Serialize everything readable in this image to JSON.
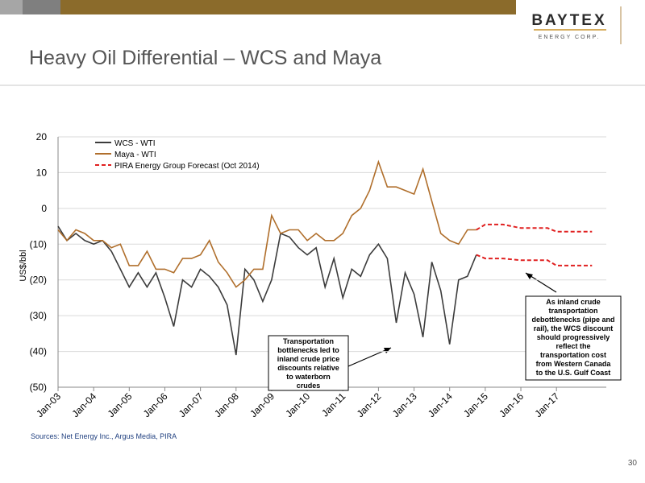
{
  "header": {
    "logo": "BAYTEX",
    "logo_sub": "ENERGY CORP.",
    "title": "Heavy Oil Differential – WCS and Maya"
  },
  "chart_data": {
    "type": "line",
    "y_label": "US$/bbl",
    "xlim": [
      2003,
      2018.4
    ],
    "xticks": [
      {
        "value": 2003,
        "label": "Jan-03"
      },
      {
        "value": 2004,
        "label": "Jan-04"
      },
      {
        "value": 2005,
        "label": "Jan-05"
      },
      {
        "value": 2006,
        "label": "Jan-06"
      },
      {
        "value": 2007,
        "label": "Jan-07"
      },
      {
        "value": 2008,
        "label": "Jan-08"
      },
      {
        "value": 2009,
        "label": "Jan-09"
      },
      {
        "value": 2010,
        "label": "Jan-10"
      },
      {
        "value": 2011,
        "label": "Jan-11"
      },
      {
        "value": 2012,
        "label": "Jan-12"
      },
      {
        "value": 2013,
        "label": "Jan-13"
      },
      {
        "value": 2014,
        "label": "Jan-14"
      },
      {
        "value": 2015,
        "label": "Jan-15"
      },
      {
        "value": 2016,
        "label": "Jan-16"
      },
      {
        "value": 2017,
        "label": "Jan-17"
      }
    ],
    "ylim": [
      -50,
      20
    ],
    "yticks": [
      20,
      10,
      0,
      {
        "value": -10,
        "label": "(10)"
      },
      {
        "value": -20,
        "label": "(20)"
      },
      {
        "value": -30,
        "label": "(30)"
      },
      {
        "value": -40,
        "label": "(40)"
      },
      {
        "value": -50,
        "label": "(50)"
      }
    ],
    "grid": true,
    "series": [
      {
        "name": "WCS - WTI",
        "color": "#3c3c3c",
        "dash": false,
        "x": [
          2003,
          2003.25,
          2003.5,
          2003.75,
          2004,
          2004.25,
          2004.5,
          2004.75,
          2005,
          2005.25,
          2005.5,
          2005.75,
          2006,
          2006.25,
          2006.5,
          2006.75,
          2007,
          2007.25,
          2007.5,
          2007.75,
          2008,
          2008.25,
          2008.5,
          2008.75,
          2009,
          2009.25,
          2009.5,
          2009.75,
          2010,
          2010.25,
          2010.5,
          2010.75,
          2011,
          2011.25,
          2011.5,
          2011.75,
          2012,
          2012.25,
          2012.5,
          2012.75,
          2013,
          2013.25,
          2013.5,
          2013.75,
          2014,
          2014.25,
          2014.5,
          2014.75
        ],
        "values": [
          -5,
          -9,
          -7,
          -9,
          -10,
          -9,
          -12,
          -17,
          -22,
          -18,
          -22,
          -18,
          -25,
          -33,
          -20,
          -22,
          -17,
          -19,
          -22,
          -27,
          -41,
          -17,
          -20,
          -26,
          -20,
          -7,
          -8,
          -11,
          -13,
          -11,
          -22,
          -14,
          -25,
          -17,
          -19,
          -13,
          -10,
          -14,
          -32,
          -18,
          -24,
          -36,
          -15,
          -23,
          -38,
          -20,
          -19,
          -13
        ]
      },
      {
        "name": "Maya - WTI",
        "color": "#b06f2c",
        "dash": false,
        "x": [
          2003,
          2003.25,
          2003.5,
          2003.75,
          2004,
          2004.25,
          2004.5,
          2004.75,
          2005,
          2005.25,
          2005.5,
          2005.75,
          2006,
          2006.25,
          2006.5,
          2006.75,
          2007,
          2007.25,
          2007.5,
          2007.75,
          2008,
          2008.25,
          2008.5,
          2008.75,
          2009,
          2009.25,
          2009.5,
          2009.75,
          2010,
          2010.25,
          2010.5,
          2010.75,
          2011,
          2011.25,
          2011.5,
          2011.75,
          2012,
          2012.25,
          2012.5,
          2012.75,
          2013,
          2013.25,
          2013.5,
          2013.75,
          2014,
          2014.25,
          2014.5,
          2014.75
        ],
        "values": [
          -6,
          -9,
          -6,
          -7,
          -9,
          -9,
          -11,
          -10,
          -16,
          -16,
          -12,
          -17,
          -17,
          -18,
          -14,
          -14,
          -13,
          -9,
          -15,
          -18,
          -22,
          -20,
          -17,
          -17,
          -2,
          -7,
          -6,
          -6,
          -9,
          -7,
          -9,
          -9,
          -7,
          -2,
          0,
          5,
          13,
          6,
          6,
          5,
          4,
          11,
          2,
          -7,
          -9,
          -10,
          -6,
          -6
        ]
      },
      {
        "name": "PIRA Energy Group Forecast (Oct 2014)",
        "color": "#e02020",
        "dash": true,
        "x": [
          2014.75,
          2015,
          2015.5,
          2016,
          2016.75,
          2017,
          2018
        ],
        "values": [
          -6,
          -4.5,
          -4.5,
          -5.5,
          -5.5,
          -6.5,
          -6.5
        ]
      },
      {
        "color": "#e02020",
        "dash": true,
        "x": [
          2014.75,
          2015,
          2015.5,
          2016,
          2016.75,
          2017,
          2018
        ],
        "values": [
          -13,
          -14,
          -14,
          -14.5,
          -14.5,
          -16,
          -16
        ]
      }
    ],
    "annotations": [
      {
        "lines": [
          "Transportation",
          "bottlenecks led to",
          "inland crude price",
          "discounts relative",
          "to waterborn",
          "crudes"
        ]
      },
      {
        "lines": [
          "As inland crude",
          "transportation",
          "debottlenecks (pipe and",
          "rail), the WCS discount",
          "should progressively",
          "reflect the",
          "transportation cost",
          "from Western Canada",
          "to the U.S. Gulf Coast"
        ]
      }
    ]
  },
  "footer": {
    "sources": "Sources: Net Energy Inc., Argus Media, PIRA",
    "page": "30"
  }
}
